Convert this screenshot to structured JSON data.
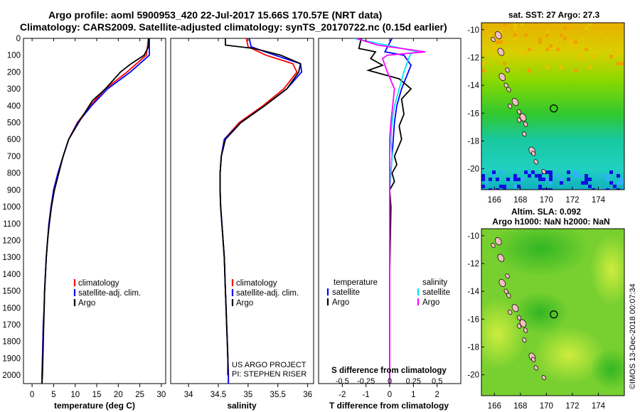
{
  "header": {
    "line1": "Argo profile: aoml 5900953_420 22-Jul-2017 15.66S 170.57E (NRT data)",
    "line2": "Climatology: CARS2009. Satellite-adjusted climatology: synTS_20170722.nc (0.15d earlier)"
  },
  "credit": {
    "project": "US ARGO PROJECT",
    "pi": "PI: STEPHEN RISER",
    "imos": "©IMOS 13-Dec-2018 00:07:34"
  },
  "colors": {
    "climatology": "#ff0000",
    "satellite": "#0000ff",
    "argo": "#000000",
    "sal_satellite": "#00e5ee",
    "sal_argo": "#ff00ff"
  },
  "depth_axis": {
    "ticks": [
      "0",
      "100",
      "200",
      "300",
      "400",
      "500",
      "600",
      "700",
      "800",
      "900",
      "1000",
      "1100",
      "1200",
      "1300",
      "1400",
      "1500",
      "1600",
      "1700",
      "1800",
      "1900",
      "2000"
    ]
  },
  "chart_data": [
    {
      "id": "temperature",
      "type": "line",
      "xlabel": "temperature (deg C)",
      "xlim": [
        -2,
        31
      ],
      "xticks": [
        0,
        5,
        10,
        15,
        20,
        25,
        30
      ],
      "xtick_labels": [
        "0",
        "5",
        "10",
        "15",
        "20",
        "25",
        "30"
      ],
      "ylim": [
        0,
        2050
      ],
      "legend": [
        "climatology",
        "satellite-adj. clim.",
        "Argo"
      ],
      "series": [
        {
          "name": "climatology",
          "x": [
            27.0,
            26.5,
            22.0,
            17.0,
            13.5,
            10.5,
            8.5,
            7.2,
            6.0,
            5.0,
            4.4,
            3.9,
            3.6,
            3.3,
            3.1,
            2.9,
            2.8,
            2.6,
            2.5,
            2.4,
            2.3,
            2.3
          ],
          "y": [
            0,
            100,
            200,
            300,
            400,
            500,
            600,
            700,
            800,
            900,
            1000,
            1100,
            1200,
            1300,
            1400,
            1500,
            1600,
            1700,
            1800,
            1900,
            2000,
            2050
          ]
        },
        {
          "name": "satellite-adj. clim.",
          "x": [
            27.2,
            27.2,
            22.8,
            17.5,
            13.8,
            10.6,
            8.5,
            7.2,
            6.0,
            5.0,
            4.4,
            3.9,
            3.6,
            3.3,
            3.1,
            2.9,
            2.8,
            2.6,
            2.5,
            2.4,
            2.3,
            2.3
          ],
          "y": [
            0,
            100,
            200,
            300,
            400,
            500,
            600,
            700,
            800,
            900,
            1000,
            1100,
            1200,
            1300,
            1400,
            1500,
            1600,
            1700,
            1800,
            1900,
            2000,
            2050
          ]
        },
        {
          "name": "Argo",
          "x": [
            27.0,
            27.0,
            26.0,
            23.0,
            20.5,
            17.0,
            14.0,
            10.8,
            8.5,
            7.2,
            6.2,
            5.2,
            4.5,
            4.0,
            3.6,
            3.3,
            3.1,
            2.9,
            2.8,
            2.7,
            2.6,
            2.5,
            2.4,
            2.3
          ],
          "y": [
            0,
            50,
            100,
            150,
            200,
            300,
            370,
            500,
            600,
            700,
            800,
            900,
            1000,
            1100,
            1200,
            1300,
            1400,
            1500,
            1600,
            1700,
            1800,
            1900,
            2000,
            2050
          ]
        }
      ]
    },
    {
      "id": "salinity",
      "type": "line",
      "xlabel": "salinity",
      "xlim": [
        33.7,
        36.1
      ],
      "xticks": [
        34,
        34.5,
        35,
        35.5,
        36
      ],
      "xtick_labels": [
        "34",
        "34.5",
        "35",
        "35.5",
        "36"
      ],
      "ylim": [
        0,
        2050
      ],
      "legend": [
        "climatology",
        "satellite-adj. clim.",
        "Argo"
      ],
      "series": [
        {
          "name": "climatology",
          "x": [
            34.97,
            35.0,
            35.3,
            35.75,
            35.82,
            35.6,
            35.25,
            34.85,
            34.6,
            34.55,
            34.53,
            34.53,
            34.54,
            34.56,
            34.58,
            34.6,
            34.61,
            34.62,
            34.63,
            34.64,
            34.65,
            34.66,
            34.67,
            34.67
          ],
          "y": [
            0,
            50,
            100,
            150,
            200,
            300,
            400,
            500,
            600,
            700,
            800,
            900,
            1000,
            1100,
            1200,
            1300,
            1400,
            1500,
            1600,
            1700,
            1800,
            1900,
            2000,
            2050
          ]
        },
        {
          "name": "satellite-adj. clim.",
          "x": [
            35.02,
            35.05,
            35.45,
            35.88,
            35.9,
            35.65,
            35.28,
            34.88,
            34.6,
            34.55,
            34.53,
            34.53,
            34.54,
            34.56,
            34.58,
            34.6,
            34.61,
            34.62,
            34.63,
            34.64,
            34.65,
            34.66,
            34.67,
            34.67
          ],
          "y": [
            0,
            50,
            100,
            150,
            200,
            300,
            400,
            500,
            600,
            700,
            800,
            900,
            1000,
            1100,
            1200,
            1300,
            1400,
            1500,
            1600,
            1700,
            1800,
            1900,
            2000,
            2050
          ]
        },
        {
          "name": "Argo",
          "x": [
            34.62,
            34.62,
            35.1,
            35.55,
            35.88,
            35.85,
            35.65,
            35.28,
            34.88,
            34.62,
            34.55,
            34.53,
            34.53,
            34.54,
            34.56,
            34.58,
            34.6,
            34.61,
            34.62,
            34.63,
            34.64,
            34.65,
            34.66,
            34.66
          ],
          "y": [
            0,
            40,
            60,
            100,
            150,
            200,
            300,
            400,
            500,
            600,
            700,
            800,
            900,
            1000,
            1100,
            1200,
            1300,
            1400,
            1500,
            1600,
            1700,
            1800,
            1900,
            2000
          ]
        }
      ]
    },
    {
      "id": "difference",
      "type": "line",
      "xlabel": "T difference from climatology",
      "xlabel_top": "S difference from climatology",
      "xlim": [
        -3,
        3
      ],
      "xticks": [
        -2,
        -1,
        0,
        1,
        2
      ],
      "xtick_labels": [
        "-2",
        "-1",
        "0",
        "1",
        "2"
      ],
      "sticks": [
        -2,
        -1,
        0,
        1,
        2
      ],
      "stick_labels": [
        "-0.5",
        "-0.25",
        "0",
        "0.25",
        "0.5"
      ],
      "ylim": [
        0,
        2050
      ],
      "legend_left_title": "temperature",
      "legend_right_title": "salinity",
      "legend_left": [
        "satellite",
        "Argo"
      ],
      "legend_right": [
        "satellite",
        "Argo"
      ],
      "series": [
        {
          "name": "T satellite",
          "x": [
            0.1,
            -0.2,
            0.6,
            0.9,
            0.5,
            0.3,
            0.2,
            0.15,
            0.1,
            0.05,
            0,
            0,
            0,
            0,
            0,
            0,
            0,
            0,
            0,
            0,
            0
          ],
          "y": [
            0,
            80,
            100,
            160,
            300,
            400,
            500,
            600,
            700,
            800,
            900,
            1000,
            1200,
            1400,
            1600,
            1800,
            1900,
            2000,
            2020,
            2040,
            2050
          ]
        },
        {
          "name": "T Argo",
          "x": [
            -1.2,
            -1.3,
            -0.6,
            -0.8,
            -0.3,
            -0.9,
            0.4,
            0.9,
            0.5,
            0.6,
            0.4,
            0.5,
            0.2,
            0.3,
            0.1,
            0.2,
            0,
            0.05,
            0,
            0,
            0
          ],
          "y": [
            0,
            60,
            80,
            120,
            160,
            190,
            240,
            300,
            360,
            450,
            520,
            600,
            700,
            750,
            800,
            850,
            900,
            1000,
            1400,
            1800,
            2050
          ]
        },
        {
          "name": "S satellite",
          "x": [
            -1.5,
            1.2,
            0.9,
            0.8,
            0.6,
            0.2,
            0.1,
            0.05,
            0.1,
            0.05,
            0,
            0,
            0,
            0,
            0,
            0,
            0
          ],
          "y": [
            0,
            80,
            90,
            120,
            200,
            400,
            500,
            600,
            700,
            800,
            900,
            1000,
            1200,
            1400,
            1600,
            1800,
            2050
          ]
        },
        {
          "name": "S Argo",
          "x": [
            -1.4,
            -0.5,
            1.5,
            -0.1,
            -0.3,
            -0.1,
            0.2,
            0.05,
            0,
            0,
            0,
            0,
            0,
            0,
            0
          ],
          "y": [
            0,
            40,
            80,
            100,
            120,
            200,
            300,
            500,
            600,
            700,
            800,
            1000,
            1400,
            1800,
            2050
          ]
        }
      ]
    },
    {
      "id": "sst-map",
      "type": "heatmap",
      "title": "sat. SST: 27 Argo: 27.3",
      "x_ticks": [
        "166",
        "168",
        "170",
        "172",
        "174"
      ],
      "y_ticks": [
        "-10",
        "-12",
        "-14",
        "-16",
        "-18",
        "-20"
      ],
      "xlim": [
        165,
        176
      ],
      "ylim": [
        -21.5,
        -9.5
      ],
      "float_position": [
        170.57,
        -15.66
      ]
    },
    {
      "id": "sla-map",
      "type": "heatmap",
      "title_line1": "Altim. SLA: 0.092",
      "title_line2": "Argo h1000: NaN h2000: NaN",
      "x_ticks": [
        "166",
        "168",
        "170",
        "172",
        "174"
      ],
      "y_ticks": [
        "-10",
        "-12",
        "-14",
        "-16",
        "-18",
        "-20"
      ],
      "xlim": [
        165,
        176
      ],
      "ylim": [
        -21.5,
        -9.5
      ],
      "float_position": [
        170.57,
        -15.66
      ]
    }
  ]
}
